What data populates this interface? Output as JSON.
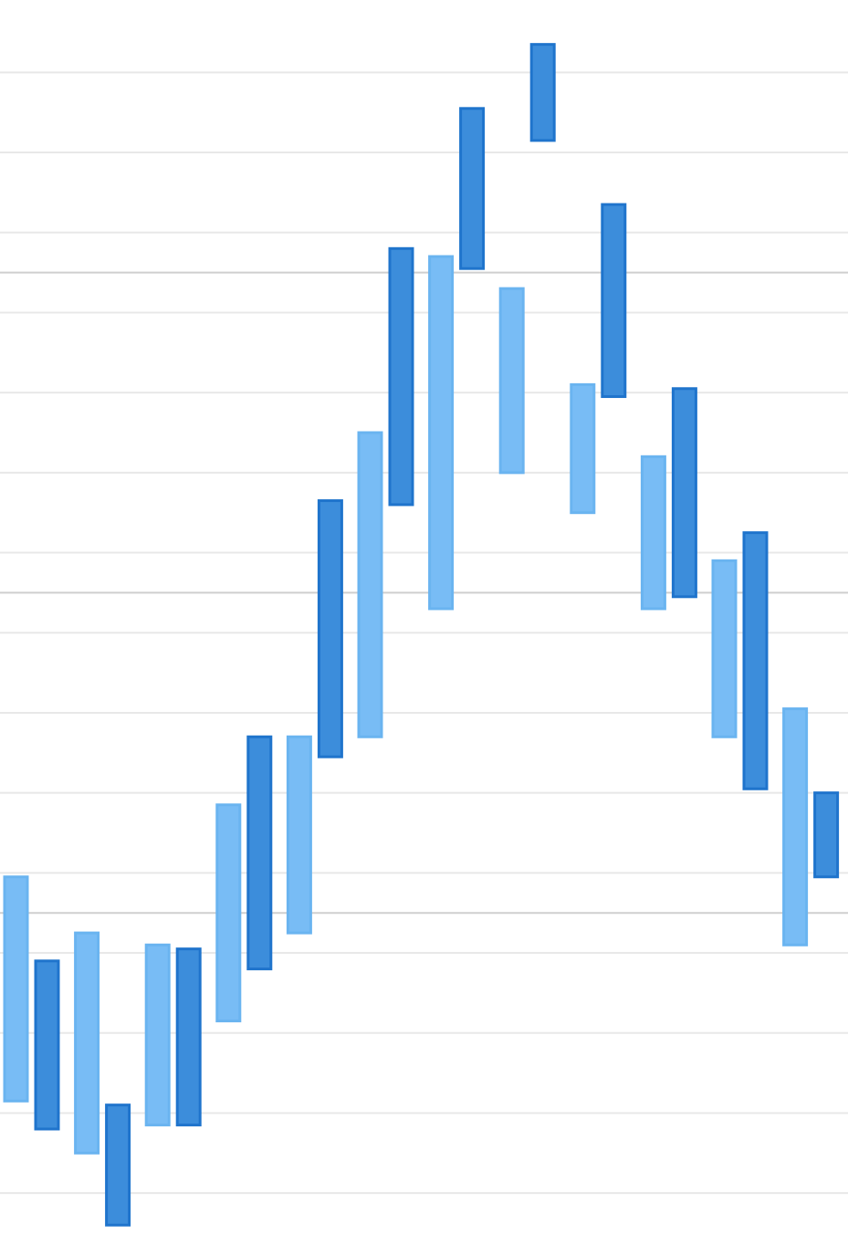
{
  "chart_data": {
    "type": "bar",
    "subtype": "floating-range",
    "title": "",
    "xlabel": "",
    "ylabel": "",
    "ylim": [
      0,
      15
    ],
    "grid": true,
    "legend": "none",
    "minor_gridlines": [
      0.5,
      1.5,
      2.5,
      3.5,
      4.5,
      5.5,
      6.5,
      7.5,
      8.5,
      9.5,
      10.5,
      11.5,
      12.5,
      13.5,
      14.5
    ],
    "major_gridlines": [
      4,
      8,
      12
    ],
    "series": [
      {
        "name": "",
        "color": "#78bcf5",
        "ranges": [
          [
            1.65,
            4.45
          ],
          [
            1.0,
            3.75
          ],
          [
            1.35,
            3.6
          ],
          [
            2.65,
            5.35
          ],
          [
            3.75,
            6.2
          ],
          [
            6.2,
            10.0
          ],
          [
            7.8,
            12.2
          ],
          [
            9.5,
            11.8
          ],
          [
            9.0,
            10.6
          ],
          [
            7.8,
            9.7
          ],
          [
            6.2,
            8.4
          ],
          [
            3.6,
            6.55
          ]
        ]
      },
      {
        "name": "",
        "color": "#3c8ddb",
        "ranges": [
          [
            1.3,
            3.4
          ],
          [
            0.1,
            1.6
          ],
          [
            1.35,
            3.55
          ],
          [
            3.3,
            6.2
          ],
          [
            5.95,
            9.15
          ],
          [
            9.1,
            12.3
          ],
          [
            12.05,
            14.05
          ],
          [
            13.65,
            14.85
          ],
          [
            10.45,
            12.85
          ],
          [
            7.95,
            10.55
          ],
          [
            5.55,
            8.75
          ],
          [
            4.45,
            5.5
          ]
        ]
      }
    ]
  }
}
